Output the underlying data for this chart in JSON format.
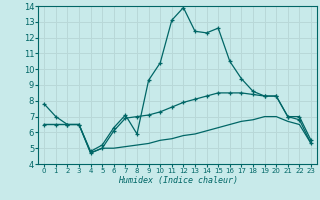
{
  "xlabel": "Humidex (Indice chaleur)",
  "bg_color": "#c8eaea",
  "grid_color": "#b8d8d8",
  "line_color": "#006666",
  "xlim": [
    -0.5,
    23.5
  ],
  "ylim": [
    4,
    14
  ],
  "xticks": [
    0,
    1,
    2,
    3,
    4,
    5,
    6,
    7,
    8,
    9,
    10,
    11,
    12,
    13,
    14,
    15,
    16,
    17,
    18,
    19,
    20,
    21,
    22,
    23
  ],
  "yticks": [
    4,
    5,
    6,
    7,
    8,
    9,
    10,
    11,
    12,
    13,
    14
  ],
  "series1_x": [
    0,
    1,
    2,
    3,
    4,
    5,
    6,
    7,
    8,
    9,
    10,
    11,
    12,
    13,
    14,
    15,
    16,
    17,
    18,
    19,
    20,
    21,
    22,
    23
  ],
  "series1_y": [
    7.8,
    7.0,
    6.5,
    6.5,
    4.8,
    5.2,
    6.3,
    7.1,
    5.9,
    9.3,
    10.4,
    13.1,
    13.9,
    12.4,
    12.3,
    12.6,
    10.5,
    9.4,
    8.6,
    8.3,
    8.3,
    7.0,
    7.0,
    5.5
  ],
  "series2_x": [
    0,
    1,
    2,
    3,
    4,
    5,
    6,
    7,
    8,
    9,
    10,
    11,
    12,
    13,
    14,
    15,
    16,
    17,
    18,
    19,
    20,
    21,
    22,
    23
  ],
  "series2_y": [
    6.5,
    6.5,
    6.5,
    6.5,
    4.7,
    5.0,
    6.1,
    6.9,
    7.0,
    7.1,
    7.3,
    7.6,
    7.9,
    8.1,
    8.3,
    8.5,
    8.5,
    8.5,
    8.4,
    8.3,
    8.3,
    7.0,
    6.8,
    5.3
  ],
  "series3_x": [
    0,
    1,
    2,
    3,
    4,
    5,
    6,
    7,
    8,
    9,
    10,
    11,
    12,
    13,
    14,
    15,
    16,
    17,
    18,
    19,
    20,
    21,
    22,
    23
  ],
  "series3_y": [
    6.5,
    6.5,
    6.5,
    6.5,
    4.7,
    5.0,
    5.0,
    5.1,
    5.2,
    5.3,
    5.5,
    5.6,
    5.8,
    5.9,
    6.1,
    6.3,
    6.5,
    6.7,
    6.8,
    7.0,
    7.0,
    6.7,
    6.5,
    5.3
  ]
}
